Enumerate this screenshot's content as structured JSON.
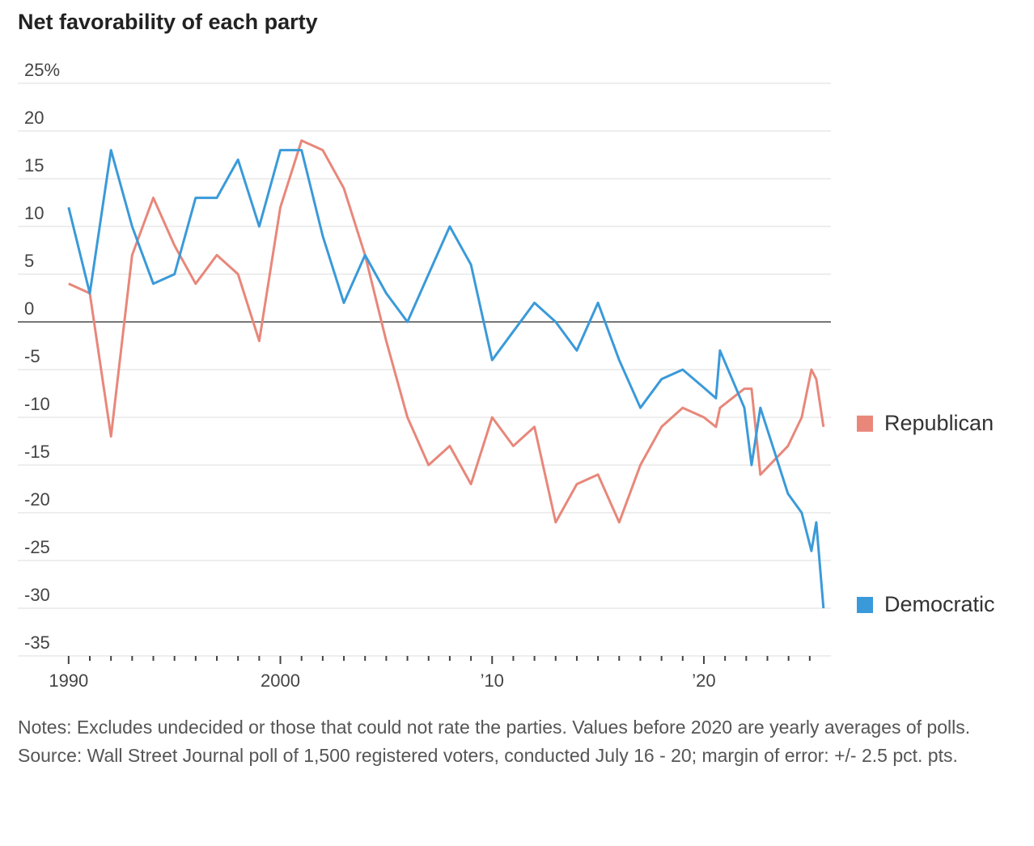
{
  "chart_data": {
    "type": "line",
    "title": "Net favorability of each party",
    "x": [
      1990,
      1991,
      1992,
      1993,
      1994,
      1995,
      1996,
      1997,
      1998,
      1999,
      2000,
      2001,
      2002,
      2003,
      2004,
      2005,
      2006,
      2007,
      2008,
      2009,
      2010,
      2011,
      2012,
      2013,
      2014,
      2015,
      2016,
      2017,
      2018,
      2019,
      2020,
      2020.57,
      2020.76,
      2021.91,
      2022.25,
      2022.67,
      2023.97,
      2024.62,
      2025.08,
      2025.31,
      2025.65
    ],
    "series": [
      {
        "name": "Republican",
        "color": "#e8877a",
        "values": [
          4,
          3,
          -12,
          7,
          13,
          8,
          4,
          7,
          5,
          -2,
          12,
          19,
          18,
          14,
          7,
          -2,
          -10,
          -15,
          -13,
          -17,
          -10,
          -13,
          -11,
          -21,
          -17,
          -16,
          -21,
          -15,
          -11,
          -9,
          -10,
          -11,
          -9,
          -7,
          -7,
          -16,
          -13,
          -10,
          -5,
          -6,
          -11
        ]
      },
      {
        "name": "Democratic",
        "color": "#3a9ad9",
        "values": [
          12,
          3,
          18,
          10,
          4,
          5,
          13,
          13,
          17,
          10,
          18,
          18,
          9,
          2,
          7,
          3,
          0,
          5,
          10,
          6,
          -4,
          -1,
          2,
          0,
          -3,
          2,
          -4,
          -9,
          -6,
          -5,
          -6.9,
          -8,
          -3,
          -9,
          -15,
          -9,
          -18,
          -20,
          -24,
          -21,
          -30
        ]
      }
    ],
    "xlim": [
      1987.6,
      2026
    ],
    "xticks": [
      1990,
      2000,
      {
        "value": 2010,
        "label": "’10"
      },
      {
        "value": 2020,
        "label": "’20"
      }
    ],
    "xminorticks": [
      1991,
      1992,
      1993,
      1994,
      1995,
      1996,
      1997,
      1998,
      1999,
      2001,
      2002,
      2003,
      2004,
      2005,
      2006,
      2007,
      2008,
      2009,
      2011,
      2012,
      2013,
      2014,
      2015,
      2016,
      2017,
      2018,
      2019,
      2021,
      2022,
      2023,
      2024,
      2025
    ],
    "ylim": [
      -35,
      25
    ],
    "yticks": [
      {
        "value": 25,
        "label": "25%"
      },
      20,
      15,
      10,
      5,
      0,
      -5,
      -10,
      -15,
      -20,
      -25,
      -30,
      -35
    ],
    "grid": true,
    "notes": "Notes: Excludes undecided or those that could not rate the parties. Values before 2020 are yearly averages of polls.",
    "source": "Source: Wall Street Journal poll of 1,500 registered voters, conducted July 16 - 20; margin of error: +/- 2.5 pct. pts."
  }
}
